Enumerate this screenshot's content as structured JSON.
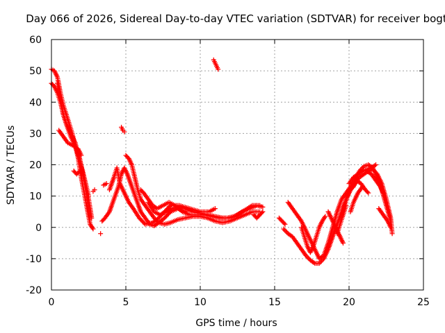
{
  "chart_data": {
    "type": "scatter",
    "title": "Day 066 of 2026, Sidereal Day-to-day VTEC variation (SDTVAR) for receiver bogt",
    "xlabel": "GPS time / hours",
    "ylabel": "SDTVAR / TECUs",
    "xlim": [
      0,
      25
    ],
    "ylim": [
      -20,
      60
    ],
    "xticks": [
      0,
      5,
      10,
      15,
      20,
      25
    ],
    "yticks": [
      -20,
      -10,
      0,
      10,
      20,
      30,
      40,
      50,
      60
    ],
    "grid": true,
    "marker": "+",
    "series_color": "#ff0000",
    "tracks": [
      [
        [
          0.0,
          50.5
        ],
        [
          0.2,
          50
        ],
        [
          0.4,
          48
        ],
        [
          0.6,
          43
        ],
        [
          0.8,
          39
        ],
        [
          1.0,
          36
        ],
        [
          1.2,
          33
        ],
        [
          1.4,
          30
        ],
        [
          1.6,
          26
        ],
        [
          1.8,
          22
        ],
        [
          2.0,
          16
        ],
        [
          2.2,
          11
        ],
        [
          2.4,
          6
        ],
        [
          2.6,
          1
        ],
        [
          2.8,
          -0.5
        ]
      ],
      [
        [
          0.0,
          46
        ],
        [
          0.2,
          45
        ],
        [
          0.4,
          43
        ],
        [
          0.6,
          40
        ],
        [
          0.8,
          36
        ],
        [
          1.0,
          33
        ],
        [
          1.3,
          29
        ],
        [
          1.6,
          26
        ],
        [
          1.9,
          22
        ],
        [
          2.2,
          15
        ],
        [
          2.4,
          9
        ],
        [
          2.6,
          3
        ]
      ],
      [
        [
          0.4,
          46
        ],
        [
          0.6,
          41
        ],
        [
          0.8,
          36
        ],
        [
          1.0,
          33
        ],
        [
          1.3,
          30
        ],
        [
          1.6,
          27
        ],
        [
          1.9,
          21
        ],
        [
          2.1,
          18
        ],
        [
          2.3,
          14
        ],
        [
          2.5,
          10
        ]
      ],
      [
        [
          0.5,
          31
        ],
        [
          0.8,
          29
        ],
        [
          1.1,
          27
        ],
        [
          1.5,
          26
        ],
        [
          1.8,
          25
        ],
        [
          2.0,
          23
        ]
      ],
      [
        [
          2.8,
          11.5
        ],
        [
          2.9,
          12
        ]
      ],
      [
        [
          3.3,
          -2
        ]
      ],
      [
        [
          3.5,
          13.5
        ],
        [
          3.7,
          14
        ]
      ],
      [
        [
          3.4,
          2
        ],
        [
          3.6,
          3
        ],
        [
          3.9,
          5
        ],
        [
          4.2,
          9
        ],
        [
          4.5,
          13
        ],
        [
          4.7,
          17
        ],
        [
          4.9,
          19
        ],
        [
          5.1,
          17
        ],
        [
          5.4,
          13
        ],
        [
          5.7,
          9
        ],
        [
          6.0,
          5
        ],
        [
          6.3,
          3
        ],
        [
          6.6,
          1
        ],
        [
          6.9,
          0.5
        ],
        [
          7.2,
          1.5
        ],
        [
          7.6,
          3
        ],
        [
          8.0,
          5
        ],
        [
          8.5,
          6
        ],
        [
          9.0,
          5
        ]
      ],
      [
        [
          3.9,
          12
        ],
        [
          4.2,
          16
        ],
        [
          4.4,
          19
        ],
        [
          4.6,
          14
        ],
        [
          4.9,
          11
        ],
        [
          5.2,
          8
        ],
        [
          5.5,
          6
        ],
        [
          5.9,
          3
        ],
        [
          6.3,
          1
        ],
        [
          6.8,
          1.5
        ],
        [
          7.2,
          3
        ],
        [
          7.6,
          5
        ],
        [
          8.0,
          7
        ],
        [
          8.6,
          7
        ],
        [
          9.3,
          6
        ],
        [
          10.0,
          5
        ],
        [
          10.6,
          5
        ],
        [
          11.0,
          6
        ]
      ],
      [
        [
          4.7,
          32
        ],
        [
          4.8,
          31
        ],
        [
          4.9,
          30.5
        ]
      ],
      [
        [
          5.0,
          23
        ],
        [
          5.2,
          22
        ],
        [
          5.4,
          20
        ],
        [
          5.6,
          16
        ],
        [
          5.8,
          12
        ],
        [
          6.0,
          9
        ],
        [
          6.3,
          7
        ],
        [
          6.6,
          5
        ],
        [
          6.9,
          3
        ],
        [
          7.2,
          1.5
        ],
        [
          7.6,
          1
        ],
        [
          8.0,
          1.5
        ],
        [
          8.5,
          2.5
        ],
        [
          9.0,
          3
        ],
        [
          9.5,
          3.5
        ],
        [
          10.0,
          3.5
        ],
        [
          10.5,
          3
        ],
        [
          11.0,
          2
        ],
        [
          11.5,
          1.5
        ],
        [
          12.0,
          2
        ],
        [
          12.5,
          3
        ],
        [
          13.0,
          4
        ],
        [
          13.5,
          5
        ],
        [
          14.0,
          5
        ]
      ],
      [
        [
          6.0,
          12
        ],
        [
          6.2,
          11
        ],
        [
          6.5,
          9
        ],
        [
          6.8,
          7
        ],
        [
          7.1,
          6
        ],
        [
          7.5,
          7
        ],
        [
          7.9,
          8
        ],
        [
          8.3,
          7
        ],
        [
          8.8,
          5
        ],
        [
          9.3,
          4
        ],
        [
          9.8,
          4
        ],
        [
          10.3,
          4
        ],
        [
          10.8,
          3.5
        ],
        [
          11.3,
          3
        ],
        [
          11.8,
          3
        ],
        [
          12.3,
          3.5
        ],
        [
          12.8,
          5
        ],
        [
          13.3,
          6
        ],
        [
          13.8,
          7
        ],
        [
          14.2,
          6.5
        ]
      ],
      [
        [
          6.5,
          8
        ],
        [
          6.9,
          5
        ],
        [
          7.3,
          4
        ],
        [
          7.7,
          5
        ],
        [
          8.1,
          6
        ],
        [
          8.5,
          6.5
        ],
        [
          9.0,
          6
        ],
        [
          9.5,
          5
        ],
        [
          10.0,
          4.5
        ],
        [
          10.5,
          4
        ],
        [
          11.0,
          3.5
        ],
        [
          11.5,
          3
        ],
        [
          12.0,
          3
        ],
        [
          12.5,
          4
        ],
        [
          13.0,
          5.5
        ],
        [
          13.5,
          7
        ],
        [
          14.0,
          7
        ]
      ],
      [
        [
          13.6,
          4
        ],
        [
          13.8,
          3
        ],
        [
          14.0,
          4
        ],
        [
          14.2,
          5
        ]
      ],
      [
        [
          10.9,
          53.5
        ],
        [
          11.0,
          52.5
        ],
        [
          11.1,
          51.5
        ],
        [
          11.2,
          50.5
        ]
      ],
      [
        [
          15.3,
          3
        ],
        [
          15.5,
          2
        ],
        [
          15.7,
          1
        ]
      ],
      [
        [
          15.6,
          -0.5
        ],
        [
          15.9,
          -2
        ],
        [
          16.2,
          -3
        ],
        [
          16.5,
          -5
        ],
        [
          16.8,
          -7
        ],
        [
          17.1,
          -9
        ],
        [
          17.4,
          -10.5
        ],
        [
          17.7,
          -11.5
        ],
        [
          18.0,
          -11.5
        ],
        [
          18.3,
          -10
        ],
        [
          18.6,
          -7
        ],
        [
          18.9,
          -3
        ],
        [
          19.2,
          1
        ],
        [
          19.5,
          5
        ],
        [
          19.8,
          9
        ],
        [
          20.1,
          12
        ],
        [
          20.4,
          14
        ],
        [
          20.7,
          16
        ],
        [
          21.0,
          17
        ],
        [
          21.3,
          18
        ],
        [
          21.6,
          18.5
        ],
        [
          21.9,
          17
        ],
        [
          22.2,
          14
        ],
        [
          22.5,
          9
        ],
        [
          22.8,
          3
        ],
        [
          22.9,
          -2
        ]
      ],
      [
        [
          15.9,
          8
        ],
        [
          16.2,
          6
        ],
        [
          16.5,
          4
        ],
        [
          16.8,
          2
        ],
        [
          17.1,
          -1
        ],
        [
          17.4,
          -4
        ],
        [
          17.7,
          -7
        ],
        [
          18.0,
          -10
        ],
        [
          18.3,
          -9
        ],
        [
          18.6,
          -5
        ],
        [
          18.9,
          0
        ],
        [
          19.2,
          5
        ],
        [
          19.5,
          9
        ],
        [
          19.8,
          11
        ],
        [
          20.1,
          13
        ],
        [
          20.4,
          15
        ],
        [
          20.7,
          18
        ],
        [
          21.0,
          19.5
        ],
        [
          21.3,
          20
        ],
        [
          21.6,
          19
        ],
        [
          21.9,
          16
        ],
        [
          22.2,
          12
        ],
        [
          22.5,
          7
        ],
        [
          22.8,
          2
        ]
      ],
      [
        [
          16.8,
          0
        ],
        [
          17.0,
          -3
        ],
        [
          17.2,
          -6
        ],
        [
          17.4,
          -8
        ],
        [
          17.6,
          -6
        ],
        [
          17.8,
          -3
        ],
        [
          18.0,
          0
        ],
        [
          18.2,
          2
        ],
        [
          18.4,
          3.5
        ]
      ],
      [
        [
          18.6,
          5
        ],
        [
          18.8,
          3
        ],
        [
          19.0,
          1
        ],
        [
          19.2,
          -1
        ],
        [
          19.4,
          -3
        ],
        [
          19.6,
          -5
        ]
      ],
      [
        [
          19.5,
          3
        ],
        [
          19.7,
          7
        ],
        [
          19.9,
          10
        ],
        [
          20.1,
          12
        ],
        [
          20.3,
          13
        ],
        [
          20.5,
          15
        ],
        [
          20.8,
          14
        ],
        [
          21.1,
          12
        ],
        [
          21.3,
          11
        ]
      ],
      [
        [
          20.0,
          14
        ],
        [
          20.3,
          16
        ],
        [
          20.6,
          17
        ],
        [
          20.9,
          18
        ],
        [
          21.2,
          18.5
        ],
        [
          21.5,
          19
        ],
        [
          21.8,
          20
        ]
      ],
      [
        [
          21.2,
          18
        ],
        [
          21.5,
          17
        ],
        [
          21.8,
          15
        ],
        [
          22.1,
          13
        ],
        [
          22.3,
          11
        ]
      ],
      [
        [
          22.0,
          6
        ],
        [
          22.3,
          4
        ],
        [
          22.6,
          2
        ],
        [
          22.8,
          0
        ]
      ],
      [
        [
          19.2,
          -2
        ],
        [
          19.4,
          1
        ],
        [
          19.6,
          4
        ],
        [
          19.8,
          7
        ]
      ],
      [
        [
          20.1,
          5
        ],
        [
          20.3,
          8
        ],
        [
          20.6,
          11
        ],
        [
          20.9,
          13
        ]
      ],
      [
        [
          1.5,
          18
        ],
        [
          1.7,
          17
        ],
        [
          1.9,
          18
        ],
        [
          2.1,
          17
        ],
        [
          2.3,
          13
        ],
        [
          2.5,
          9
        ],
        [
          2.7,
          3
        ]
      ]
    ]
  }
}
